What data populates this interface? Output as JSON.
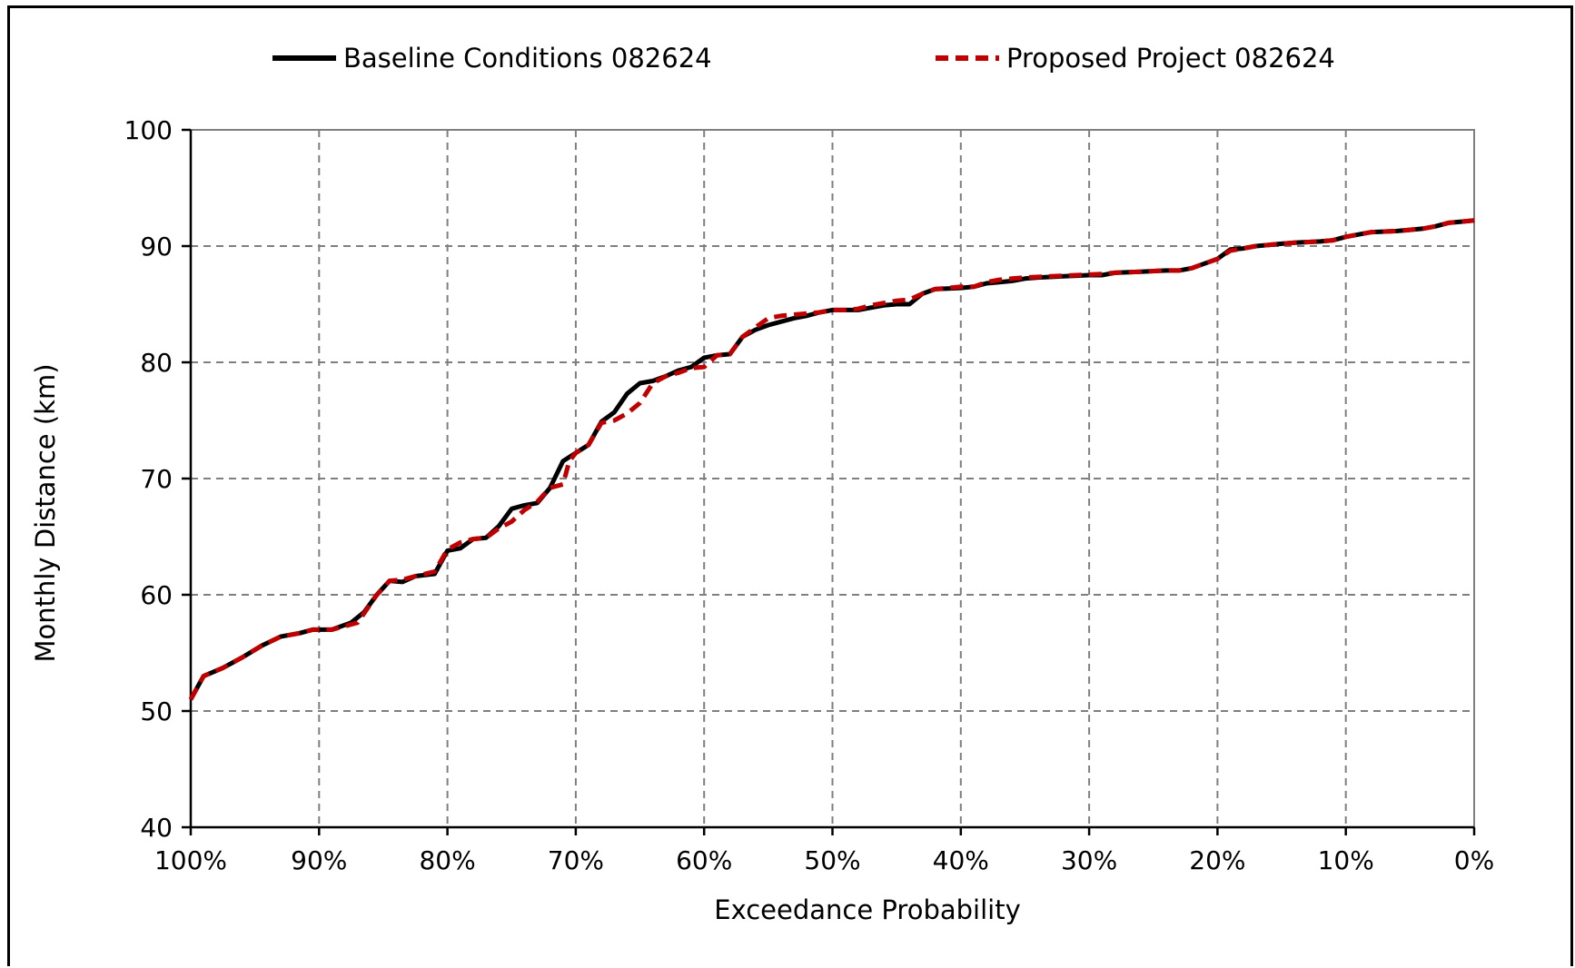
{
  "chart_data": {
    "type": "line",
    "xlabel": "Exceedance Probability",
    "ylabel": "Monthly Distance (km)",
    "x_ticks": [
      {
        "value": 100,
        "label": "100%"
      },
      {
        "value": 90,
        "label": "90%"
      },
      {
        "value": 80,
        "label": "80%"
      },
      {
        "value": 70,
        "label": "70%"
      },
      {
        "value": 60,
        "label": "60%"
      },
      {
        "value": 50,
        "label": "50%"
      },
      {
        "value": 40,
        "label": "40%"
      },
      {
        "value": 30,
        "label": "30%"
      },
      {
        "value": 20,
        "label": "20%"
      },
      {
        "value": 10,
        "label": "10%"
      },
      {
        "value": 0,
        "label": "0%"
      }
    ],
    "y_ticks": [
      {
        "value": 40,
        "label": "40"
      },
      {
        "value": 50,
        "label": "50"
      },
      {
        "value": 60,
        "label": "60"
      },
      {
        "value": 70,
        "label": "70"
      },
      {
        "value": 80,
        "label": "80"
      },
      {
        "value": 90,
        "label": "90"
      },
      {
        "value": 100,
        "label": "100"
      }
    ],
    "xlim": [
      100,
      0
    ],
    "ylim": [
      40,
      100
    ],
    "x_reversed": true,
    "grid": true,
    "legend_position": "top",
    "series": [
      {
        "name": "Baseline Conditions 082624",
        "color": "#000000",
        "style": "solid",
        "points": [
          [
            100,
            51
          ],
          [
            99,
            53
          ],
          [
            97.5,
            53.7
          ],
          [
            96,
            54.6
          ],
          [
            94.5,
            55.6
          ],
          [
            93,
            56.4
          ],
          [
            91.5,
            56.7
          ],
          [
            90.5,
            57
          ],
          [
            89,
            57
          ],
          [
            87.5,
            57.6
          ],
          [
            86.5,
            58.5
          ],
          [
            85.5,
            60
          ],
          [
            84.5,
            61.2
          ],
          [
            83.5,
            61.1
          ],
          [
            82.5,
            61.6
          ],
          [
            81,
            61.8
          ],
          [
            80,
            63.8
          ],
          [
            79,
            64
          ],
          [
            78,
            64.8
          ],
          [
            77,
            64.9
          ],
          [
            76,
            65.9
          ],
          [
            75,
            67.4
          ],
          [
            74,
            67.7
          ],
          [
            73,
            67.9
          ],
          [
            72,
            69.2
          ],
          [
            71,
            71.5
          ],
          [
            70,
            72.2
          ],
          [
            69,
            72.9
          ],
          [
            68,
            74.9
          ],
          [
            67,
            75.7
          ],
          [
            66,
            77.3
          ],
          [
            65,
            78.2
          ],
          [
            64,
            78.4
          ],
          [
            63,
            78.8
          ],
          [
            62,
            79.3
          ],
          [
            61,
            79.6
          ],
          [
            60,
            80.4
          ],
          [
            59,
            80.6
          ],
          [
            58,
            80.7
          ],
          [
            57,
            82.2
          ],
          [
            56,
            82.8
          ],
          [
            55,
            83.2
          ],
          [
            54,
            83.5
          ],
          [
            53,
            83.8
          ],
          [
            52,
            84
          ],
          [
            51,
            84.3
          ],
          [
            50,
            84.5
          ],
          [
            49,
            84.5
          ],
          [
            48,
            84.5
          ],
          [
            47,
            84.7
          ],
          [
            46,
            84.9
          ],
          [
            45,
            85
          ],
          [
            44,
            85
          ],
          [
            43,
            85.9
          ],
          [
            42,
            86.3
          ],
          [
            40,
            86.4
          ],
          [
            39,
            86.5
          ],
          [
            38,
            86.8
          ],
          [
            37,
            86.9
          ],
          [
            36,
            87
          ],
          [
            35,
            87.2
          ],
          [
            34,
            87.3
          ],
          [
            32,
            87.4
          ],
          [
            30,
            87.5
          ],
          [
            29,
            87.5
          ],
          [
            28,
            87.7
          ],
          [
            26,
            87.8
          ],
          [
            24,
            87.9
          ],
          [
            23,
            87.9
          ],
          [
            22,
            88.1
          ],
          [
            21,
            88.5
          ],
          [
            20,
            88.9
          ],
          [
            19,
            89.7
          ],
          [
            18,
            89.8
          ],
          [
            17,
            90
          ],
          [
            15,
            90.2
          ],
          [
            14,
            90.3
          ],
          [
            12,
            90.4
          ],
          [
            11,
            90.5
          ],
          [
            10,
            90.8
          ],
          [
            9,
            91
          ],
          [
            8,
            91.2
          ],
          [
            6,
            91.3
          ],
          [
            5,
            91.4
          ],
          [
            4,
            91.5
          ],
          [
            3,
            91.7
          ],
          [
            2,
            92
          ],
          [
            1,
            92.1
          ],
          [
            0,
            92.2
          ]
        ]
      },
      {
        "name": "Proposed Project 082624",
        "color": "#c00000",
        "style": "dashed",
        "points": [
          [
            100,
            51
          ],
          [
            99,
            53
          ],
          [
            97.5,
            53.7
          ],
          [
            96,
            54.6
          ],
          [
            94.5,
            55.6
          ],
          [
            93,
            56.4
          ],
          [
            91.5,
            56.7
          ],
          [
            90.5,
            57
          ],
          [
            89,
            57
          ],
          [
            88,
            57.3
          ],
          [
            87,
            57.6
          ],
          [
            86.5,
            58.4
          ],
          [
            85.5,
            60
          ],
          [
            84.5,
            61.2
          ],
          [
            83.5,
            61.3
          ],
          [
            82.5,
            61.6
          ],
          [
            81,
            62
          ],
          [
            80,
            63.9
          ],
          [
            79,
            64.5
          ],
          [
            78,
            64.8
          ],
          [
            77,
            64.9
          ],
          [
            76,
            65.7
          ],
          [
            75,
            66.3
          ],
          [
            74,
            67.3
          ],
          [
            73,
            68
          ],
          [
            72,
            69.2
          ],
          [
            71,
            69.5
          ],
          [
            70.5,
            71.5
          ],
          [
            70,
            72.2
          ],
          [
            69,
            72.9
          ],
          [
            68,
            74.8
          ],
          [
            67,
            75
          ],
          [
            66,
            75.6
          ],
          [
            65,
            76.5
          ],
          [
            64,
            78.2
          ],
          [
            63,
            78.8
          ],
          [
            62,
            79.1
          ],
          [
            61,
            79.5
          ],
          [
            60,
            79.6
          ],
          [
            59,
            80.6
          ],
          [
            58,
            80.7
          ],
          [
            57,
            82.2
          ],
          [
            56,
            83
          ],
          [
            55,
            83.8
          ],
          [
            54,
            84
          ],
          [
            53,
            84.1
          ],
          [
            52,
            84.2
          ],
          [
            51,
            84.3
          ],
          [
            50,
            84.5
          ],
          [
            49,
            84.5
          ],
          [
            48,
            84.6
          ],
          [
            47,
            84.9
          ],
          [
            46,
            85.1
          ],
          [
            45,
            85.3
          ],
          [
            44,
            85.4
          ],
          [
            43,
            85.9
          ],
          [
            42,
            86.3
          ],
          [
            40,
            86.5
          ],
          [
            39,
            86.5
          ],
          [
            38,
            86.9
          ],
          [
            37,
            87.1
          ],
          [
            36,
            87.2
          ],
          [
            35,
            87.3
          ],
          [
            33,
            87.4
          ],
          [
            31,
            87.5
          ],
          [
            29,
            87.6
          ],
          [
            28,
            87.7
          ],
          [
            26,
            87.8
          ],
          [
            24,
            87.9
          ],
          [
            23,
            87.9
          ],
          [
            22,
            88.1
          ],
          [
            21,
            88.5
          ],
          [
            20,
            88.9
          ],
          [
            19,
            89.6
          ],
          [
            18,
            89.8
          ],
          [
            17,
            90
          ],
          [
            15,
            90.2
          ],
          [
            14,
            90.3
          ],
          [
            12,
            90.4
          ],
          [
            11,
            90.5
          ],
          [
            10,
            90.8
          ],
          [
            9,
            91
          ],
          [
            8,
            91.2
          ],
          [
            6,
            91.3
          ],
          [
            5,
            91.4
          ],
          [
            4,
            91.5
          ],
          [
            3,
            91.7
          ],
          [
            2,
            92
          ],
          [
            1,
            92.1
          ],
          [
            0,
            92.2
          ]
        ]
      }
    ]
  }
}
